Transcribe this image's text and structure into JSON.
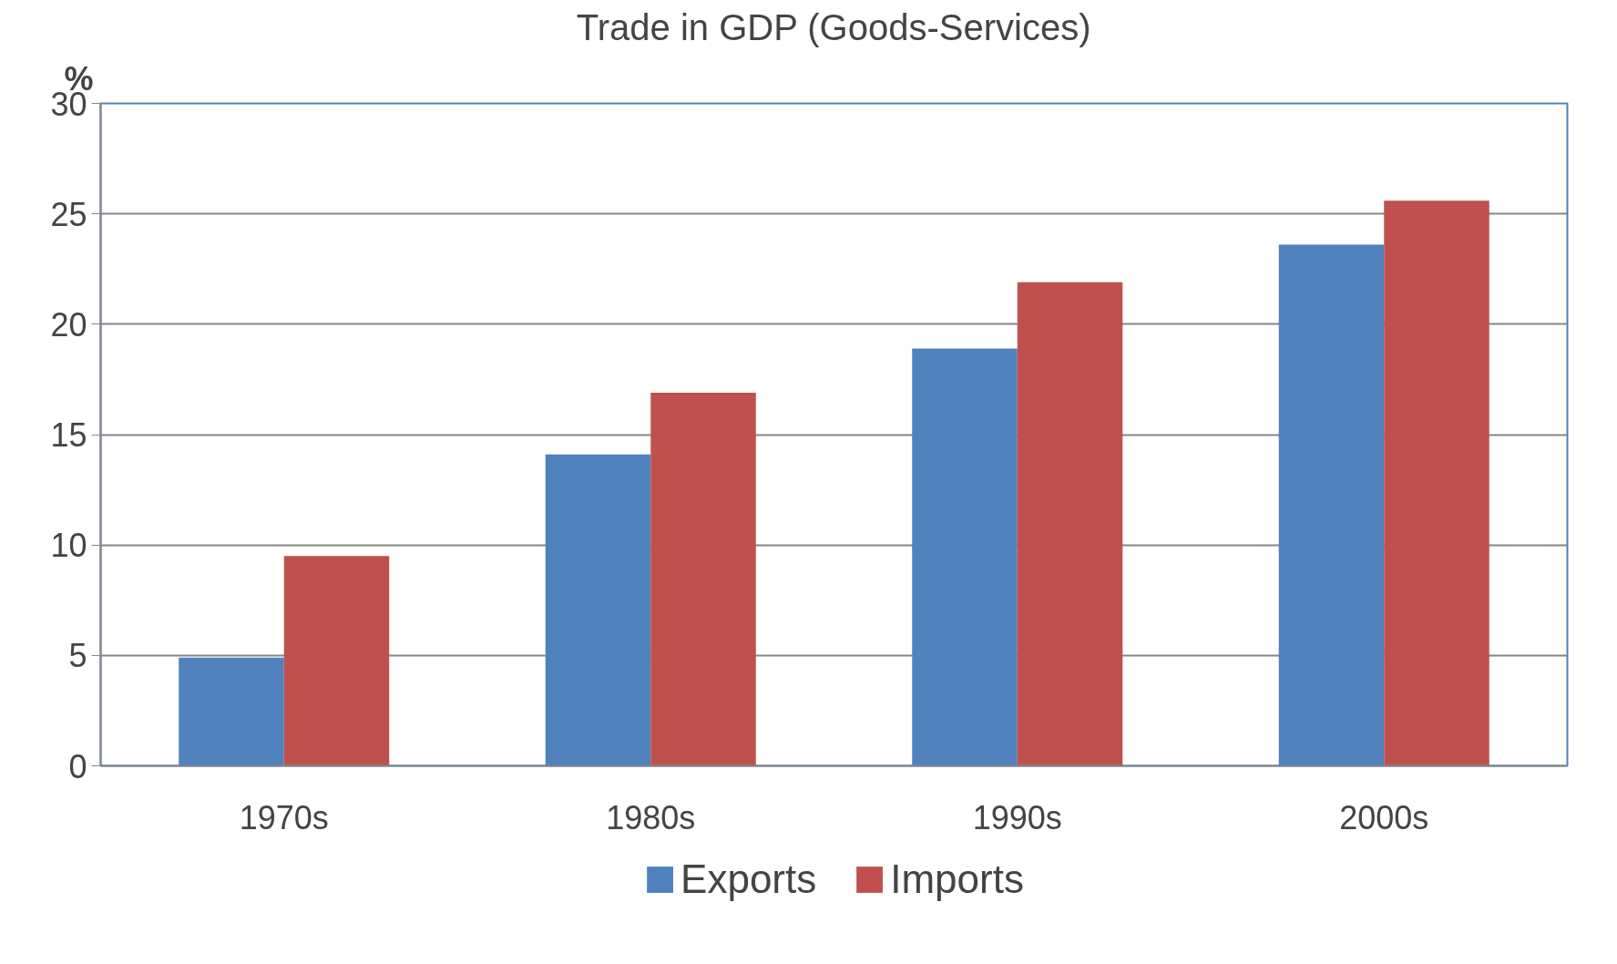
{
  "chart_data": {
    "type": "bar",
    "title": "Trade in GDP (Goods-Services)",
    "ylabel": "%",
    "categories": [
      "1970s",
      "1980s",
      "1990s",
      "2000s"
    ],
    "series": [
      {
        "name": "Exports",
        "color": "#4f81bd",
        "values": [
          4.9,
          14.1,
          18.9,
          23.6
        ]
      },
      {
        "name": "Imports",
        "color": "#c0504d",
        "values": [
          9.5,
          16.9,
          21.9,
          25.6
        ]
      }
    ],
    "ylim": [
      0,
      30
    ],
    "yticks": [
      0,
      5,
      10,
      15,
      20,
      25,
      30
    ],
    "grid": "y",
    "legend": "bottom"
  }
}
